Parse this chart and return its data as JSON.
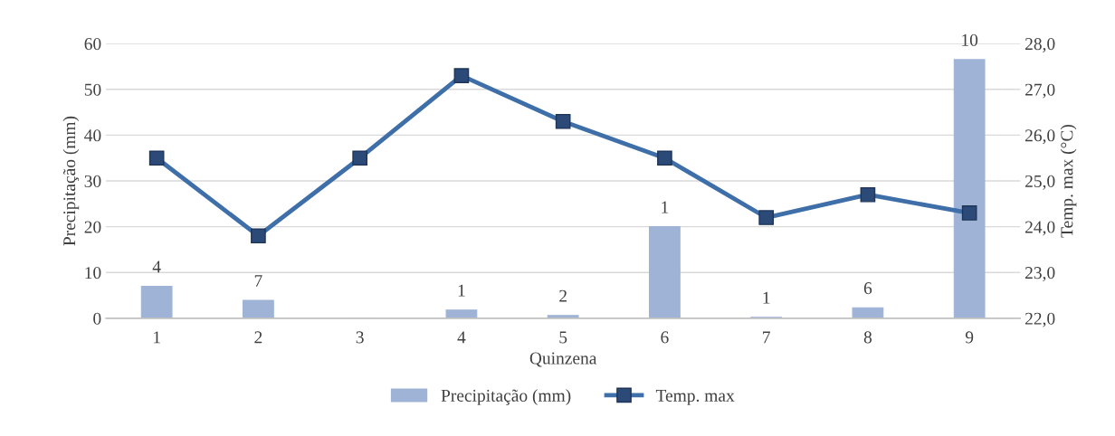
{
  "chart_data": {
    "type": "bar",
    "xlabel": "Quinzena",
    "ylabel": "Precipitação (mm)",
    "y2label": "Temp. max (°C)",
    "categories": [
      "1",
      "2",
      "3",
      "4",
      "5",
      "6",
      "7",
      "8",
      "9"
    ],
    "series": [
      {
        "name": "Precipitação (mm)",
        "color": "#9fb3d6",
        "values": [
          7.0,
          3.9,
          0,
          1.8,
          0.6,
          20.0,
          0.2,
          2.3,
          56.5
        ]
      },
      {
        "name": "Temp. max",
        "type": "line",
        "axis": "y2",
        "color": "#3f6fa8",
        "marker": "square",
        "values": [
          25.5,
          23.8,
          25.5,
          27.3,
          26.3,
          25.5,
          24.2,
          24.7,
          24.3
        ]
      }
    ],
    "ylim": [
      0,
      60
    ],
    "yticks": [
      0,
      10,
      20,
      30,
      40,
      50,
      60
    ],
    "y2lim": [
      22,
      28
    ],
    "y2ticks": [
      {
        "value": 22,
        "label": "22,0"
      },
      {
        "value": 23,
        "label": "23,0"
      },
      {
        "value": 24,
        "label": "24,0"
      },
      {
        "value": 25,
        "label": "25,0"
      },
      {
        "value": 26,
        "label": "26,0"
      },
      {
        "value": 27,
        "label": "27,0"
      },
      {
        "value": 28,
        "label": "28,0"
      }
    ],
    "annotations": [
      {
        "text": "4",
        "x": "1",
        "y": 7.0
      },
      {
        "text": "7",
        "x": "2",
        "y": 3.9
      },
      {
        "text": "1",
        "x": "4",
        "y": 1.8
      },
      {
        "text": "2",
        "x": "5",
        "y": 0.6
      },
      {
        "text": "1",
        "x": "6",
        "y": 20.0
      },
      {
        "text": "1",
        "x": "7",
        "y": 0.2
      },
      {
        "text": "6",
        "x": "8",
        "y": 2.3
      },
      {
        "text": "10",
        "x": "9",
        "y": 56.5
      }
    ],
    "grid": "y",
    "legend": "bottom",
    "line_style": "solid"
  }
}
